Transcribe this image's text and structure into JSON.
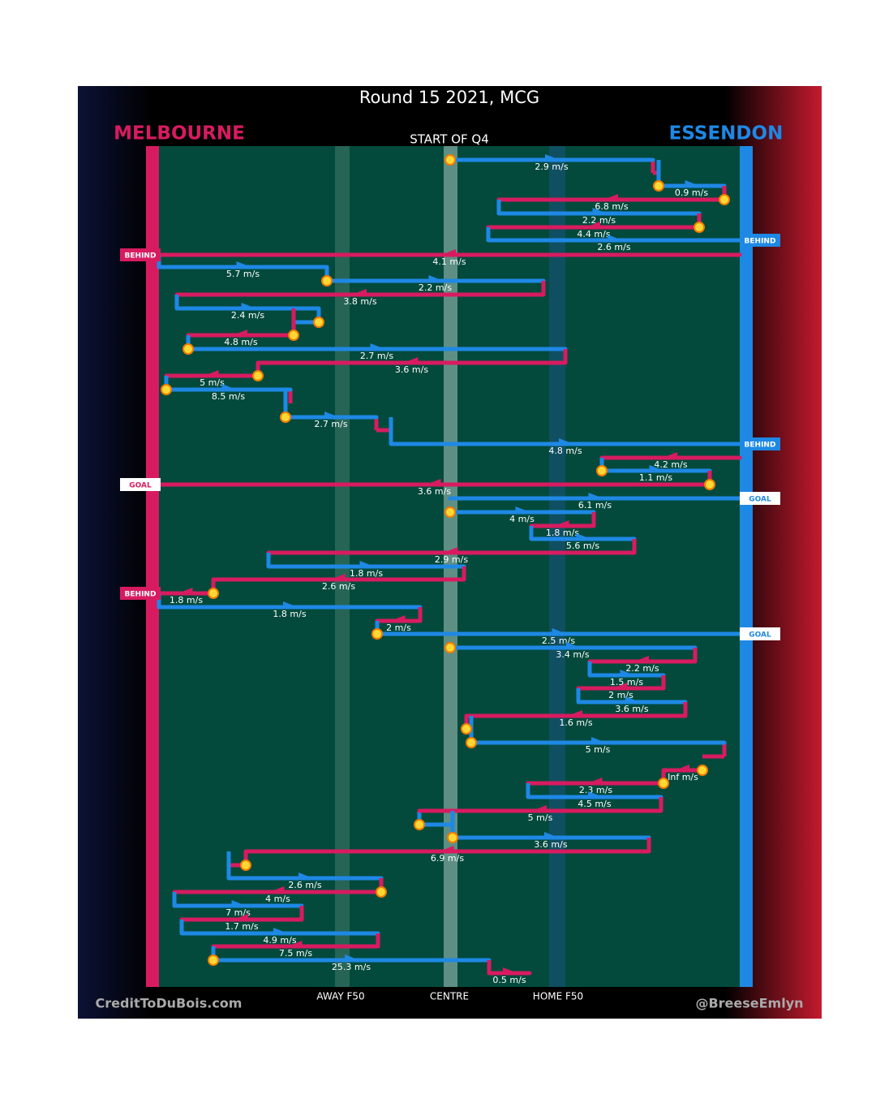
{
  "title": "Round 15 2021, MCG",
  "home_team": "MELBOURNE",
  "away_team": "ESSENDON",
  "period": "START OF Q4",
  "zones": [
    "AWAY F50",
    "CENTRE",
    "HOME F50"
  ],
  "credit_left": "CreditToDuBois.com",
  "credit_right": "@BreeseEmlyn",
  "speeds": [
    "2.9 m/s",
    "0.9 m/s",
    "6.8 m/s",
    "2.2 m/s",
    "4.4 m/s",
    "2.6 m/s",
    "4.1 m/s",
    "5.7 m/s",
    "2.2 m/s",
    "3.8 m/s",
    "2.4 m/s",
    "4.8 m/s",
    "2.7 m/s",
    "3.6 m/s",
    "5 m/s",
    "8.5 m/s",
    "2.7 m/s",
    "4.8 m/s",
    "4.2 m/s",
    "1.1 m/s",
    "3.6 m/s",
    "6.1 m/s",
    "4 m/s",
    "1.8 m/s",
    "5.6 m/s",
    "2.9 m/s",
    "1.8 m/s",
    "2.6 m/s",
    "1.8 m/s",
    "1.8 m/s",
    "2 m/s",
    "2.5 m/s",
    "3.4 m/s",
    "2.2 m/s",
    "1.5 m/s",
    "2 m/s",
    "3.6 m/s",
    "1.6 m/s",
    "5 m/s",
    "Inf m/s",
    "2.3 m/s",
    "4.5 m/s",
    "5 m/s",
    "3.6 m/s",
    "6.9 m/s",
    "2.6 m/s",
    "4 m/s",
    "7 m/s",
    "1.7 m/s",
    "4.9 m/s",
    "7.5 m/s",
    "25.3 m/s",
    "0.5 m/s"
  ],
  "tags": [
    "BEHIND",
    "BEHIND",
    "BEHIND",
    "GOAL",
    "GOAL",
    "BEHIND",
    "GOAL"
  ]
}
